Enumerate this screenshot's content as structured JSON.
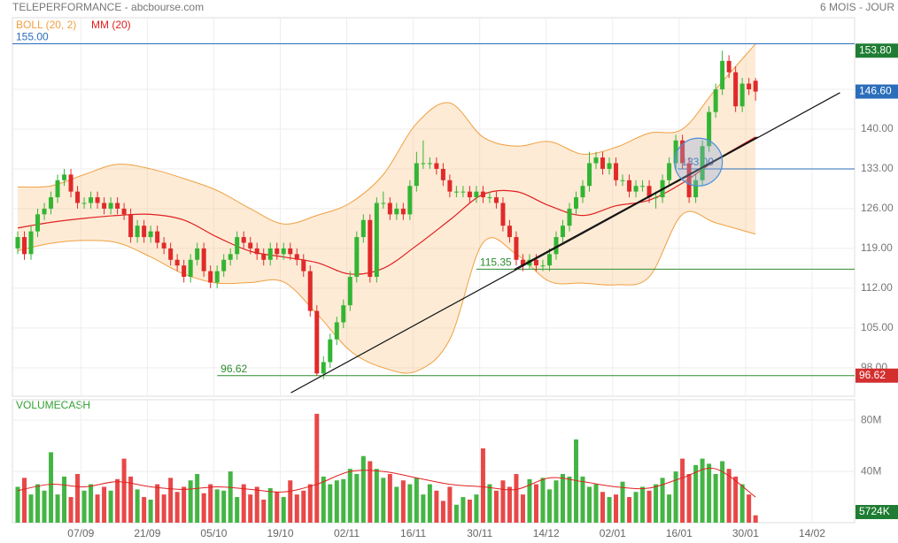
{
  "chart_data": [
    {
      "type": "candlestick",
      "title": "TELEPERFORMANCE - abcbourse.com",
      "subtitle": "6 MOIS - JOUR",
      "up_color": "#33b533",
      "down_color": "#e02a2a",
      "open": [
        119,
        121,
        118,
        122,
        125,
        126,
        128,
        131,
        132,
        129,
        127,
        127,
        128,
        127,
        126,
        127,
        126,
        125,
        121,
        123,
        121,
        122,
        120,
        119,
        117,
        116,
        114,
        117,
        119,
        115,
        113,
        115,
        117,
        118,
        121,
        120,
        119,
        118,
        117,
        119,
        118,
        119,
        118,
        117,
        115,
        108,
        97,
        99,
        103,
        106,
        109,
        114,
        121,
        124,
        114,
        127,
        127,
        125,
        126,
        125,
        130,
        134,
        134,
        134,
        133,
        131,
        129,
        129,
        129,
        128,
        129,
        128,
        128,
        127,
        123,
        121,
        117,
        116,
        117,
        116,
        116,
        118,
        121,
        123,
        126,
        128,
        130,
        134,
        135,
        133,
        134,
        131,
        131,
        129,
        130,
        130,
        128,
        128,
        131,
        134,
        138,
        134,
        128,
        131,
        137,
        143,
        147,
        152,
        150,
        144,
        148,
        148.5
      ],
      "high": [
        122,
        122,
        123,
        126,
        127,
        129,
        132,
        133,
        133,
        130,
        128,
        129,
        129,
        128,
        128,
        128,
        127,
        126,
        124,
        124,
        123,
        123,
        121,
        120,
        118,
        117,
        118,
        120,
        120,
        116,
        116,
        118,
        119,
        122,
        122,
        121,
        120,
        119,
        120,
        120,
        120,
        120,
        119,
        118,
        116,
        109,
        100,
        104,
        107,
        110,
        115,
        122,
        125,
        125,
        128,
        129,
        128,
        127,
        127,
        131,
        136,
        138,
        135,
        135,
        134,
        132,
        130,
        130,
        130,
        130,
        130,
        129,
        129,
        128,
        124,
        122,
        118,
        118,
        118,
        117,
        119,
        122,
        124,
        127,
        129,
        131,
        136,
        136,
        136,
        135,
        135,
        132,
        132,
        131,
        131,
        131,
        129,
        132,
        135,
        139,
        139,
        135,
        132,
        138,
        144,
        148,
        153.8,
        153,
        151,
        149,
        149,
        149
      ],
      "low": [
        118,
        117,
        117,
        121,
        124,
        125,
        127,
        130,
        128,
        126,
        126,
        126,
        126,
        125,
        125,
        125,
        124,
        120,
        120,
        120,
        120,
        119,
        118,
        116,
        115,
        113,
        113,
        116,
        114,
        112,
        112,
        114,
        116,
        117,
        119,
        118,
        117,
        116,
        116,
        117,
        117,
        117,
        116,
        114,
        107,
        96.62,
        96,
        98,
        102,
        105,
        108,
        113,
        120,
        113,
        113,
        126,
        124,
        124,
        124,
        124,
        129,
        133,
        133,
        132,
        130,
        128,
        128,
        128,
        127,
        127,
        127,
        127,
        126,
        122,
        120,
        116,
        115,
        115.35,
        115,
        115,
        115,
        117,
        120,
        122,
        125,
        127,
        129,
        133,
        132,
        132,
        130,
        130,
        128,
        128,
        129,
        127,
        126,
        127,
        130,
        133,
        133,
        127,
        127,
        130,
        136,
        142,
        146,
        149,
        143,
        143,
        146,
        145
      ],
      "close": [
        121,
        118,
        122,
        125,
        126,
        128,
        131,
        132,
        129,
        127,
        127,
        128,
        127,
        126,
        127,
        126,
        125,
        121,
        123,
        121,
        122,
        120,
        119,
        117,
        116,
        114,
        117,
        119,
        115,
        113,
        115,
        117,
        118,
        121,
        120,
        119,
        118,
        117,
        119,
        118,
        119,
        118,
        117,
        115,
        108,
        97,
        99,
        103,
        106,
        109,
        114,
        121,
        124,
        114,
        127,
        127,
        125,
        126,
        125,
        130,
        134,
        134,
        134,
        133,
        131,
        129,
        129,
        129,
        128,
        129,
        128,
        128,
        127,
        123,
        121,
        117,
        116,
        117,
        116,
        116,
        118,
        121,
        123,
        126,
        128,
        130,
        134,
        135,
        133,
        134,
        131,
        131,
        129,
        130,
        130,
        128,
        128,
        131,
        134,
        138,
        134,
        128,
        131,
        137,
        143,
        147,
        152,
        150,
        144,
        148,
        147,
        146.6
      ],
      "series": [
        {
          "name": "BOLL (20, 2)",
          "color": "#f0a040",
          "x": [
            0,
            5,
            10,
            15,
            20,
            25,
            30,
            35,
            40,
            45,
            50,
            55,
            60,
            65,
            70,
            75,
            80,
            85,
            90,
            95,
            100,
            105,
            111
          ],
          "upper": [
            129.8,
            130,
            132,
            133.8,
            133,
            131.3,
            129.2,
            126,
            123.3,
            124.8,
            127,
            132,
            141,
            144.6,
            138.6,
            137,
            137.8,
            135.6,
            136.8,
            139.3,
            140,
            147,
            155
          ],
          "lower": [
            118.6,
            119.9,
            120.4,
            120,
            117.5,
            114.5,
            112.9,
            113,
            113.1,
            107.5,
            101,
            98,
            97.4,
            103,
            120,
            118,
            113.2,
            112.9,
            112.6,
            114,
            125,
            123.5,
            121.5
          ]
        },
        {
          "name": "MM (20)",
          "color": "#e02020",
          "x": [
            0,
            5,
            10,
            15,
            20,
            25,
            30,
            35,
            40,
            45,
            50,
            55,
            60,
            65,
            70,
            75,
            80,
            85,
            90,
            95,
            100,
            105,
            111
          ],
          "values": [
            122.6,
            123.6,
            124.3,
            124.8,
            125,
            124,
            121,
            118.5,
            117.5,
            116.5,
            114.5,
            115.5,
            119.5,
            124,
            128.5,
            129,
            126.5,
            124.8,
            126.5,
            127.5,
            130.5,
            134.5,
            138.6
          ]
        }
      ],
      "levels": [
        {
          "value": 155,
          "label": "155.00",
          "color": "#2a6ebb",
          "start": -0.8,
          "line": true,
          "box": false
        },
        {
          "value": 153.8,
          "label": "153.80",
          "color": "#1e7d32",
          "line": false,
          "box": true
        },
        {
          "value": 146.6,
          "label": "146.60",
          "color": "#2a6ebb",
          "line": false,
          "box": true
        },
        {
          "value": 133,
          "label": "133.00",
          "color": "#2a6ebb",
          "start": 99.3,
          "line": true,
          "box": false
        },
        {
          "value": 115.35,
          "label": "115.35",
          "color": "#2e8b2e",
          "start": 69,
          "line": true,
          "box": false
        },
        {
          "value": 96.62,
          "label": "96.62",
          "color": "#2e8b2e",
          "start": 30,
          "line": true,
          "box": true,
          "box_color": "#d32f2f"
        }
      ],
      "trendlines": [
        {
          "x": [
            41.1,
            123.7
          ],
          "y": [
            93.6,
            146.4
          ]
        },
        {
          "x": [
            74.7,
            111.3
          ],
          "y": [
            115.3,
            138.6
          ]
        }
      ],
      "highlight": {
        "x": 102.4,
        "y": 134.2
      },
      "xlim": [
        -0.8,
        125.9
      ],
      "xticks": [
        {
          "value": 9.5,
          "label": "07/09"
        },
        {
          "value": 19.5,
          "label": "21/09"
        },
        {
          "value": 29.5,
          "label": "05/10"
        },
        {
          "value": 39.5,
          "label": "19/10"
        },
        {
          "value": 49.5,
          "label": "02/11"
        },
        {
          "value": 59.5,
          "label": "16/11"
        },
        {
          "value": 69.5,
          "label": "30/11"
        },
        {
          "value": 79.5,
          "label": "14/12"
        },
        {
          "value": 89.5,
          "label": "02/01"
        },
        {
          "value": 99.5,
          "label": "16/01"
        },
        {
          "value": 109.5,
          "label": "30/01"
        },
        {
          "value": 119.5,
          "label": "14/02"
        }
      ],
      "ylim": [
        93,
        159.6
      ],
      "yticks": [
        {
          "value": 98,
          "label": "98.00"
        },
        {
          "value": 105,
          "label": "105.00"
        },
        {
          "value": 112,
          "label": "112.00"
        },
        {
          "value": 119,
          "label": "119.00"
        },
        {
          "value": 126,
          "label": "126.00"
        },
        {
          "value": 133,
          "label": "133.00"
        },
        {
          "value": 140,
          "label": "140.00"
        },
        {
          "value": 147,
          "label": "147.00"
        }
      ],
      "grid": true
    },
    {
      "type": "bar",
      "title": "VOLUMECASH",
      "values": [
        28,
        35,
        22,
        30,
        25,
        55,
        22,
        36,
        20,
        38,
        25,
        30,
        22,
        28,
        25,
        34,
        50,
        36,
        26,
        20,
        18,
        30,
        22,
        35,
        24,
        28,
        33,
        38,
        23,
        30,
        26,
        25,
        40,
        20,
        30,
        22,
        28,
        18,
        27,
        24,
        20,
        33,
        22,
        25,
        30,
        85,
        36,
        30,
        33,
        34,
        42,
        38,
        52,
        48,
        42,
        35,
        38,
        28,
        33,
        30,
        35,
        22,
        30,
        25,
        17,
        28,
        14,
        20,
        18,
        22,
        58,
        30,
        25,
        33,
        28,
        38,
        22,
        34,
        30,
        35,
        26,
        33,
        38,
        36,
        65,
        36,
        28,
        30,
        24,
        20,
        22,
        32,
        20,
        24,
        28,
        25,
        30,
        35,
        22,
        40,
        50,
        38,
        45,
        50,
        46,
        38,
        48,
        42,
        36,
        30,
        22,
        5.724
      ],
      "value_labels": {
        "111": "5724K"
      },
      "up_color": "#44b544",
      "down_color": "#e84848",
      "box_color": "#1e7d32",
      "series": [
        {
          "color": "#e02020",
          "x": [
            0,
            5,
            10,
            15,
            20,
            25,
            30,
            35,
            40,
            45,
            50,
            55,
            60,
            65,
            70,
            75,
            80,
            85,
            90,
            95,
            100,
            105,
            111
          ],
          "values": [
            25,
            30,
            28,
            32,
            28,
            26,
            28,
            26,
            24,
            30,
            40,
            40,
            35,
            30,
            28,
            26,
            35,
            32,
            28,
            27,
            35,
            42,
            20
          ]
        }
      ],
      "ylim": [
        0,
        96
      ],
      "yticks": [
        {
          "value": 40,
          "label": "40M"
        },
        {
          "value": 80,
          "label": "80M"
        }
      ],
      "grid": true
    }
  ]
}
